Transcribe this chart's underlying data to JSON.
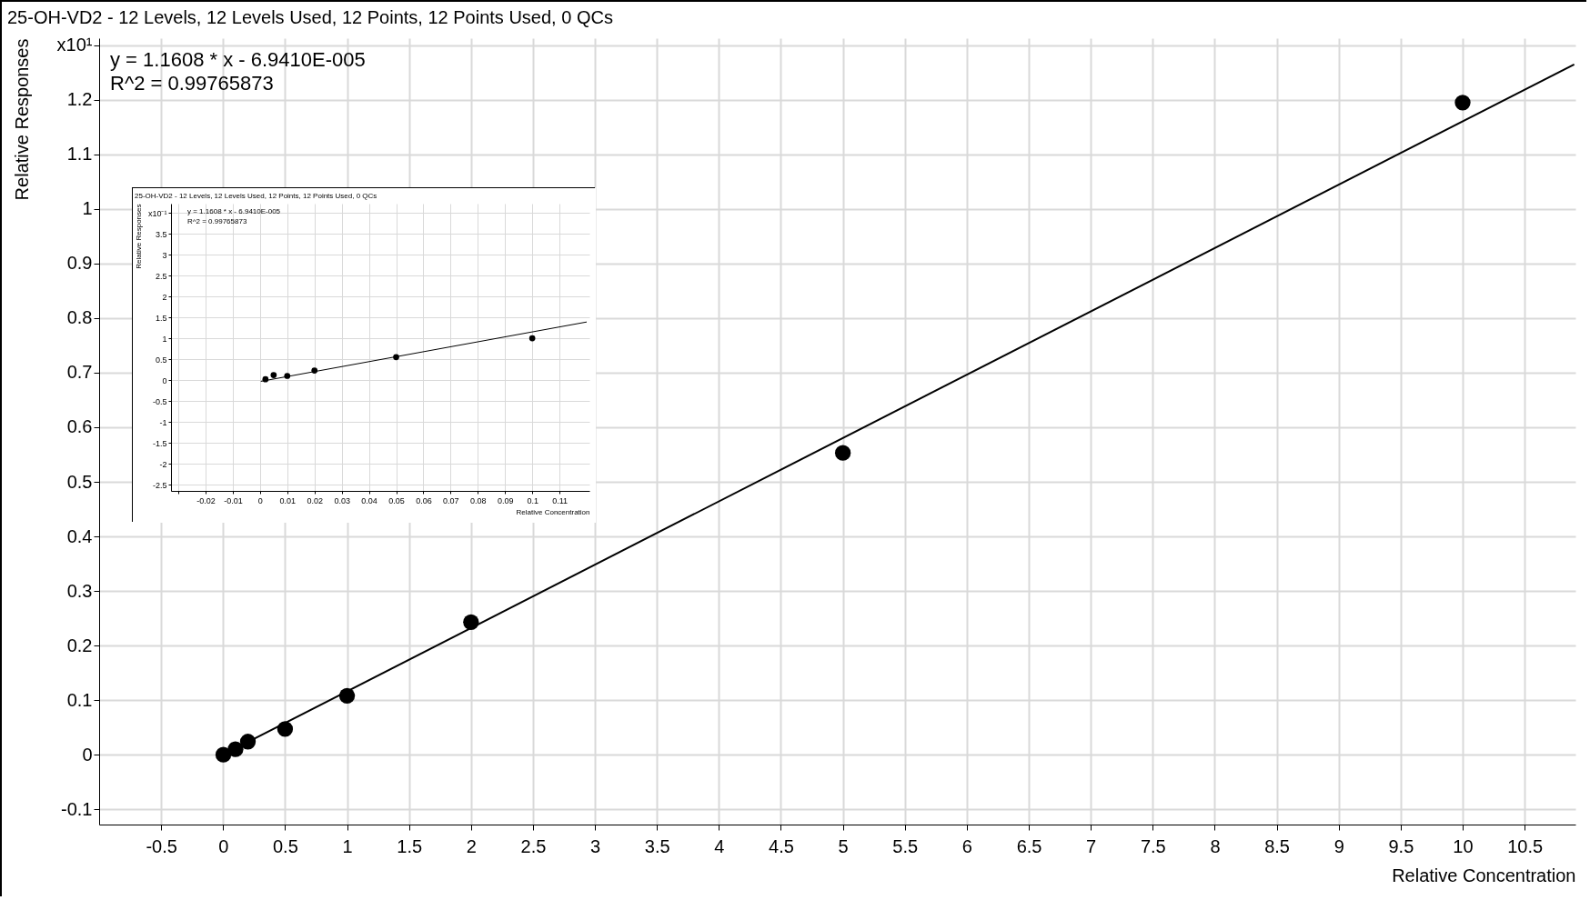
{
  "chart_data": [
    {
      "type": "scatter",
      "title": "25-OH-VD2 - 12 Levels, 12 Levels Used, 12 Points, 12 Points Used, 0 QCs",
      "xlabel": "Relative Concentration",
      "ylabel": "Relative Responses",
      "annotations": [
        "y = 1.1608 * x  - 6.9410E-005",
        "R^2 = 0.99765873"
      ],
      "grid": true,
      "xlim": [
        -1.0,
        10.91
      ],
      "xticks": [
        -0.5,
        0,
        0.5,
        1,
        1.5,
        2,
        2.5,
        3,
        3.5,
        4,
        4.5,
        5,
        5.5,
        6,
        6.5,
        7,
        7.5,
        8,
        8.5,
        9,
        9.5,
        10,
        10.5
      ],
      "ylim": [
        -0.128,
        1.313
      ],
      "yticks": [
        -0.1,
        0,
        0.1,
        0.2,
        0.3,
        0.4,
        0.5,
        0.6,
        0.7,
        0.8,
        0.9,
        1,
        1.1,
        1.2,
        {
          "value": 1.3,
          "label": "x10¹"
        }
      ],
      "series": [
        {
          "type": "scatter",
          "color": "#000000",
          "marker": "circle",
          "x": [
            0.002,
            0.05,
            0.1,
            0.2,
            0.5,
            1,
            2,
            5,
            10
          ],
          "values": [
            0,
            null,
            0.01,
            0.024,
            0.047,
            0.108,
            0.243,
            0.553,
            1.195
          ]
        },
        {
          "type": "line",
          "marker": "none",
          "color": "#000000",
          "x": [
            0,
            10.9
          ],
          "values": [
            0,
            1.265
          ]
        }
      ]
    },
    {
      "type": "scatter",
      "title": "25-OH-VD2 - 12 Levels, 12 Levels Used, 12 Points, 12 Points Used, 0 QCs",
      "xlabel": "Relative Concentration",
      "ylabel": "Relative Responses",
      "annotations": [
        "y = 1.1608 * x  - 6.9410E-005",
        "R^2 = 0.99765873"
      ],
      "grid": true,
      "xlim": [
        -0.0327,
        0.121
      ],
      "xticks": [
        {
          "value": -0.03,
          "label": null
        },
        -0.02,
        -0.01,
        0,
        0.01,
        0.02,
        0.03,
        0.04,
        0.05,
        0.06,
        0.07,
        0.08,
        0.09,
        0.1,
        0.11
      ],
      "ylim": [
        -2.65,
        4.22
      ],
      "yticks": [
        -2.5,
        -2,
        -1.5,
        -1,
        -0.5,
        0,
        0.5,
        1,
        1.5,
        2,
        2.5,
        3,
        3.5,
        {
          "value": 4,
          "label": "x10⁻¹"
        }
      ],
      "series": [
        {
          "type": "scatter",
          "color": "#000000",
          "marker": "circle",
          "x": [
            0.002,
            0.005,
            0.01,
            0.02,
            0.05,
            0.1
          ],
          "values": [
            0.02,
            0.12,
            0.1,
            0.23,
            0.55,
            1.0
          ]
        },
        {
          "type": "line",
          "marker": "none",
          "color": "#000000",
          "x": [
            0.0003,
            0.12
          ],
          "values": [
            -0.03,
            1.39
          ]
        }
      ]
    }
  ]
}
